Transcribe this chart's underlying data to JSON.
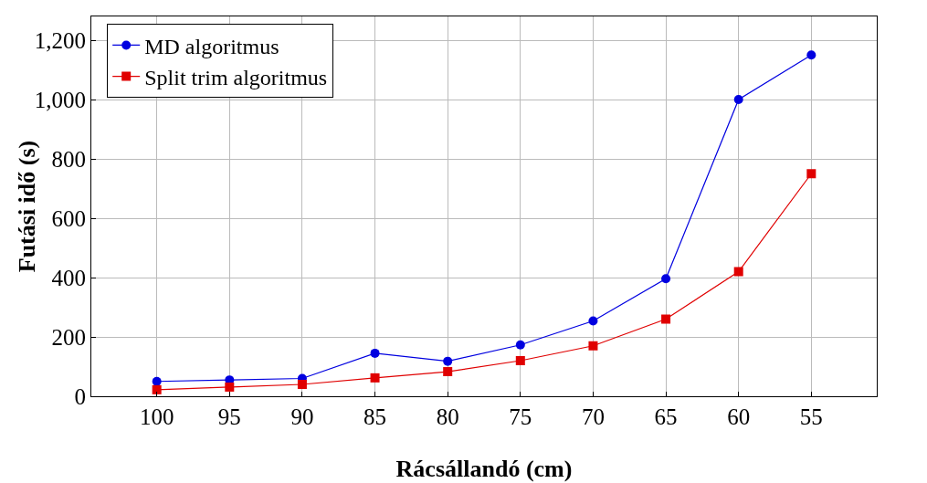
{
  "chart_data": {
    "type": "line",
    "xlabel": "Rácsállandó (cm)",
    "ylabel": "Futási idő (s)",
    "x": [
      100,
      95,
      90,
      85,
      80,
      75,
      70,
      65,
      60,
      55
    ],
    "series": [
      {
        "name": "MD algoritmus",
        "color": "#0000e0",
        "marker": "circle",
        "values": [
          50,
          55,
          60,
          145,
          118,
          173,
          254,
          396,
          1000,
          1150
        ]
      },
      {
        "name": "Split trim algoritmus",
        "color": "#e00000",
        "marker": "square",
        "values": [
          22,
          31,
          40,
          62,
          83,
          120,
          170,
          260,
          420,
          750
        ]
      }
    ],
    "xlim": [
      104.5,
      50.5
    ],
    "xticks": [
      100,
      95,
      90,
      85,
      80,
      75,
      70,
      65,
      60,
      55
    ],
    "ylim": [
      0,
      1280
    ],
    "yticks": [
      0,
      200,
      400,
      600,
      800,
      {
        "value": 1000,
        "label": "1,000"
      },
      {
        "value": 1200,
        "label": "1,200"
      }
    ],
    "grid": true,
    "legend": "top left",
    "line_style": "solid"
  }
}
